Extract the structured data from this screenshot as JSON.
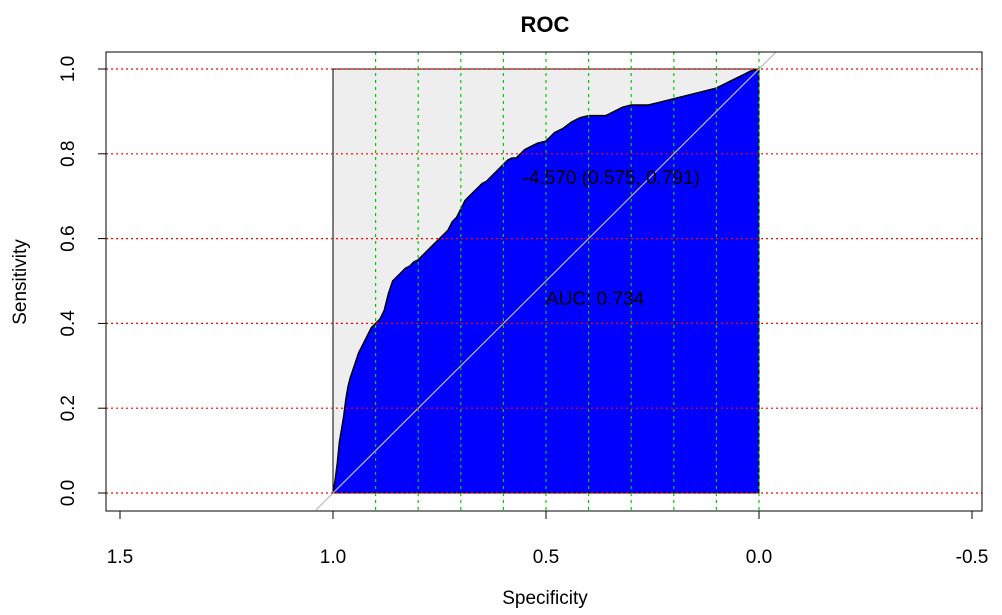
{
  "chart_data": {
    "type": "area",
    "title": "ROC",
    "xlabel": "Specificity",
    "ylabel": "Sensitivity",
    "xlim": [
      1.5,
      -0.5
    ],
    "ylim": [
      0,
      1
    ],
    "x_reversed": true,
    "x_ticks": [
      "1.5",
      "1.0",
      "0.5",
      "0.0",
      "-0.5"
    ],
    "x_tick_values": [
      1.5,
      1.0,
      0.5,
      0.0,
      -0.5
    ],
    "y_ticks": [
      "0.0",
      "0.2",
      "0.4",
      "0.6",
      "0.8",
      "1.0"
    ],
    "y_tick_values": [
      0.0,
      0.2,
      0.4,
      0.6,
      0.8,
      1.0
    ],
    "grid": {
      "horizontal": true,
      "horizontal_color": "#ff0000",
      "vertical": true,
      "vertical_color": "#00cc00",
      "vertical_values": [
        0.9,
        0.8,
        0.7,
        0.6,
        0.5,
        0.4,
        0.3,
        0.2,
        0.1,
        0.0
      ]
    },
    "auc_fill_color": "#0000ff",
    "background_fill_color": "#eeeeee",
    "diagonal_color": "#bbbbbb",
    "series": [
      {
        "specificity": [
          1.0,
          0.995,
          0.99,
          0.985,
          0.98,
          0.975,
          0.97,
          0.965,
          0.96,
          0.95,
          0.94,
          0.93,
          0.92,
          0.91,
          0.9,
          0.89,
          0.88,
          0.87,
          0.86,
          0.85,
          0.84,
          0.83,
          0.82,
          0.81,
          0.8,
          0.79,
          0.78,
          0.77,
          0.76,
          0.75,
          0.74,
          0.73,
          0.72,
          0.71,
          0.7,
          0.69,
          0.68,
          0.67,
          0.66,
          0.65,
          0.64,
          0.63,
          0.62,
          0.61,
          0.6,
          0.59,
          0.58,
          0.57,
          0.56,
          0.55,
          0.54,
          0.53,
          0.52,
          0.5,
          0.48,
          0.46,
          0.44,
          0.42,
          0.4,
          0.38,
          0.36,
          0.34,
          0.32,
          0.3,
          0.28,
          0.26,
          0.24,
          0.22,
          0.2,
          0.18,
          0.16,
          0.14,
          0.12,
          0.1,
          0.08,
          0.06,
          0.04,
          0.02,
          0.0
        ],
        "sensitivity": [
          0.0,
          0.03,
          0.07,
          0.12,
          0.15,
          0.18,
          0.22,
          0.25,
          0.27,
          0.3,
          0.33,
          0.35,
          0.37,
          0.39,
          0.4,
          0.41,
          0.43,
          0.47,
          0.5,
          0.51,
          0.52,
          0.53,
          0.535,
          0.545,
          0.55,
          0.56,
          0.57,
          0.58,
          0.59,
          0.6,
          0.61,
          0.62,
          0.64,
          0.65,
          0.67,
          0.69,
          0.7,
          0.71,
          0.72,
          0.73,
          0.735,
          0.745,
          0.755,
          0.765,
          0.775,
          0.785,
          0.79,
          0.79,
          0.8,
          0.81,
          0.815,
          0.82,
          0.825,
          0.83,
          0.85,
          0.86,
          0.875,
          0.885,
          0.89,
          0.89,
          0.89,
          0.9,
          0.91,
          0.915,
          0.915,
          0.915,
          0.92,
          0.925,
          0.93,
          0.935,
          0.94,
          0.945,
          0.95,
          0.955,
          0.965,
          0.975,
          0.985,
          0.995,
          1.0
        ]
      }
    ],
    "annotations": [
      {
        "text": "-4.570 (0.575, 0.791)",
        "x": 0.555,
        "y": 0.745
      },
      {
        "text": "AUC: 0.734",
        "x": 0.5,
        "y": 0.46
      }
    ]
  }
}
